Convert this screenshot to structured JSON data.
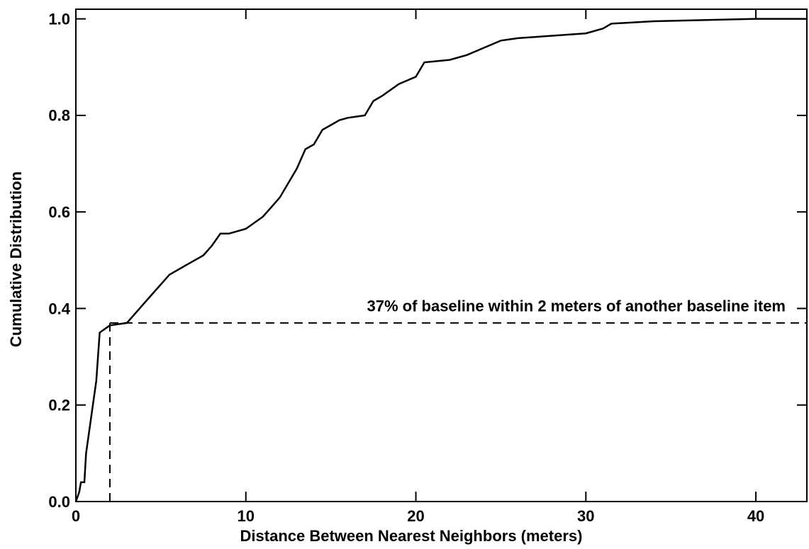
{
  "chart_data": {
    "type": "line",
    "xlabel": "Distance Between Nearest Neighbors (meters)",
    "ylabel": "Cumulative Distribution",
    "annotation": "37% of baseline within 2 meters of another baseline item",
    "reference": {
      "x": 2,
      "y": 0.37
    },
    "color": "#000000",
    "x": [
      0,
      0.2,
      0.3,
      0.5,
      0.6,
      0.8,
      1.0,
      1.2,
      1.4,
      1.8,
      2,
      3,
      3.5,
      4,
      4.5,
      5,
      5.5,
      6,
      6.5,
      7,
      7.5,
      8,
      8.5,
      9,
      10,
      11,
      11.5,
      12,
      12.5,
      13,
      13.5,
      14,
      14.5,
      15,
      15.5,
      16,
      17,
      17.5,
      18,
      19,
      20,
      20.5,
      22,
      23,
      24,
      25,
      26,
      28,
      30,
      31,
      31.5,
      34,
      40,
      43
    ],
    "values": [
      0,
      0.02,
      0.04,
      0.04,
      0.1,
      0.15,
      0.2,
      0.25,
      0.35,
      0.36,
      0.365,
      0.37,
      0.39,
      0.41,
      0.43,
      0.45,
      0.47,
      0.48,
      0.49,
      0.5,
      0.51,
      0.53,
      0.555,
      0.555,
      0.565,
      0.59,
      0.61,
      0.63,
      0.66,
      0.69,
      0.73,
      0.74,
      0.77,
      0.78,
      0.79,
      0.795,
      0.8,
      0.83,
      0.84,
      0.865,
      0.88,
      0.91,
      0.915,
      0.925,
      0.94,
      0.955,
      0.96,
      0.965,
      0.97,
      0.98,
      0.99,
      0.995,
      1.0,
      1.0
    ],
    "xlim": [
      0,
      43
    ],
    "ylim": [
      0,
      1.02
    ],
    "xticks": [
      0,
      10,
      20,
      30,
      40
    ],
    "yticks": [
      {
        "value": 0,
        "label": "0.0"
      },
      0.2,
      0.4,
      0.6,
      0.8,
      {
        "value": 1,
        "label": "1.0"
      }
    ]
  }
}
